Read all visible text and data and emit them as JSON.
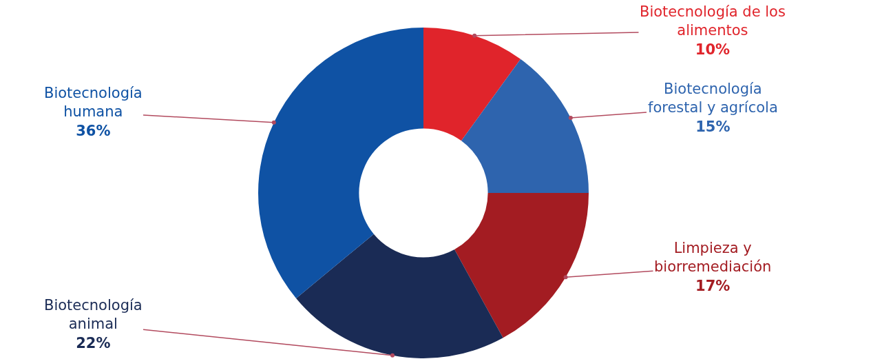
{
  "chart_data": {
    "type": "donut",
    "categories": [
      "Biotecnología de los alimentos",
      "Biotecnología forestal y agrícola",
      "Limpieza y biorremediación",
      "Biotecnología animal",
      "Biotecnología humana"
    ],
    "values": [
      10,
      15,
      17,
      22,
      36
    ],
    "value_labels": [
      "10%",
      "15%",
      "17%",
      "22%",
      "36%"
    ],
    "colors": [
      "#e0242b",
      "#2e64ae",
      "#a31c22",
      "#1a2b55",
      "#0f52a4"
    ],
    "legend": false
  }
}
